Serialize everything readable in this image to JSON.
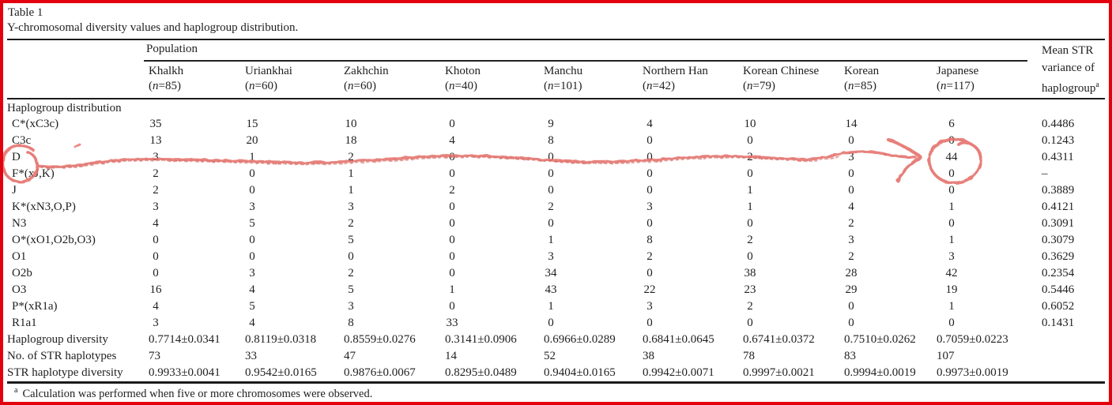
{
  "frame": {
    "border_color": "#e3000f"
  },
  "table": {
    "label": "Table 1",
    "caption": "Y-chromosomal diversity values and haplogroup distribution.",
    "group_header": "Population",
    "columns": [
      {
        "name": "Khalkh",
        "n": "(n=85)"
      },
      {
        "name": "Uriankhai",
        "n": "(n=60)"
      },
      {
        "name": "Zakhchin",
        "n": "(n=60)"
      },
      {
        "name": "Khoton",
        "n": "(n=40)"
      },
      {
        "name": "Manchu",
        "n": "(n=101)"
      },
      {
        "name": "Northern Han",
        "n": "(n=42)"
      },
      {
        "name": "Korean Chinese",
        "n": "(n=79)"
      },
      {
        "name": "Korean",
        "n": "(n=85)"
      },
      {
        "name": "Japanese",
        "n": "(n=117)"
      }
    ],
    "mean_column_header": {
      "lines": [
        "Mean STR",
        "variance of",
        "haplogroup"
      ],
      "footnote_marker": "a"
    },
    "section_label": "Haplogroup distribution",
    "rows": [
      {
        "label": "C*(xC3c)",
        "values": [
          "35",
          "15",
          "10",
          "0",
          "9",
          "4",
          "10",
          "14",
          "6"
        ],
        "mean": "0.4486"
      },
      {
        "label": "C3c",
        "values": [
          "13",
          "20",
          "18",
          "4",
          "8",
          "0",
          "0",
          "0",
          "0"
        ],
        "mean": "0.1243"
      },
      {
        "label": "D",
        "values": [
          "3",
          "1",
          "2",
          "0",
          "0",
          "0",
          "2",
          "3",
          "44"
        ],
        "mean": "0.4311"
      },
      {
        "label": "F*(xJ,K)",
        "values": [
          "2",
          "0",
          "1",
          "0",
          "0",
          "0",
          "0",
          "0",
          "0"
        ],
        "mean": "–"
      },
      {
        "label": "J",
        "values": [
          "2",
          "0",
          "1",
          "2",
          "0",
          "0",
          "1",
          "0",
          "0"
        ],
        "mean": "0.3889"
      },
      {
        "label": "K*(xN3,O,P)",
        "values": [
          "3",
          "3",
          "3",
          "0",
          "2",
          "3",
          "1",
          "4",
          "1"
        ],
        "mean": "0.4121"
      },
      {
        "label": "N3",
        "values": [
          "4",
          "5",
          "2",
          "0",
          "0",
          "0",
          "0",
          "2",
          "0"
        ],
        "mean": "0.3091"
      },
      {
        "label": "O*(xO1,O2b,O3)",
        "values": [
          "0",
          "0",
          "5",
          "0",
          "1",
          "8",
          "2",
          "3",
          "1"
        ],
        "mean": "0.3079"
      },
      {
        "label": "O1",
        "values": [
          "0",
          "0",
          "0",
          "0",
          "3",
          "2",
          "0",
          "2",
          "3"
        ],
        "mean": "0.3629"
      },
      {
        "label": "O2b",
        "values": [
          "0",
          "3",
          "2",
          "0",
          "34",
          "0",
          "38",
          "28",
          "42"
        ],
        "mean": "0.2354"
      },
      {
        "label": "O3",
        "values": [
          "16",
          "4",
          "5",
          "1",
          "43",
          "22",
          "23",
          "29",
          "19"
        ],
        "mean": "0.5446"
      },
      {
        "label": "P*(xR1a)",
        "values": [
          "4",
          "5",
          "3",
          "0",
          "1",
          "3",
          "2",
          "0",
          "1"
        ],
        "mean": "0.6052"
      },
      {
        "label": "R1a1",
        "values": [
          "3",
          "4",
          "8",
          "33",
          "0",
          "0",
          "0",
          "0",
          "0"
        ],
        "mean": "0.1431"
      }
    ],
    "summary_rows": [
      {
        "label": "Haplogroup diversity",
        "values": [
          "0.7714±0.0341",
          "0.8119±0.0318",
          "0.8559±0.0276",
          "0.3141±0.0906",
          "0.6966±0.0289",
          "0.6841±0.0645",
          "0.6741±0.0372",
          "0.7510±0.0262",
          "0.7059±0.0223"
        ],
        "mean": ""
      },
      {
        "label": "No. of STR haplotypes",
        "values": [
          "73",
          "33",
          "47",
          "14",
          "52",
          "38",
          "78",
          "83",
          "107"
        ],
        "mean": ""
      },
      {
        "label": "STR haplotype diversity",
        "values": [
          "0.9933±0.0041",
          "0.9542±0.0165",
          "0.9876±0.0067",
          "0.8295±0.0489",
          "0.9404±0.0165",
          "0.9942±0.0071",
          "0.9997±0.0021",
          "0.9994±0.0019",
          "0.9973±0.0019"
        ],
        "mean": ""
      }
    ],
    "footnote_marker": "a",
    "footnote": "Calculation was performed when five or more chromosomes were observed."
  },
  "annotation": {
    "kind": "hand-drawn red marker",
    "color": "#e4716b",
    "shade_color": "#d05a54",
    "circled_row_label": "D",
    "strikethrough_row": "D",
    "arrow_target_column": "Japanese",
    "circled_value": "44"
  }
}
